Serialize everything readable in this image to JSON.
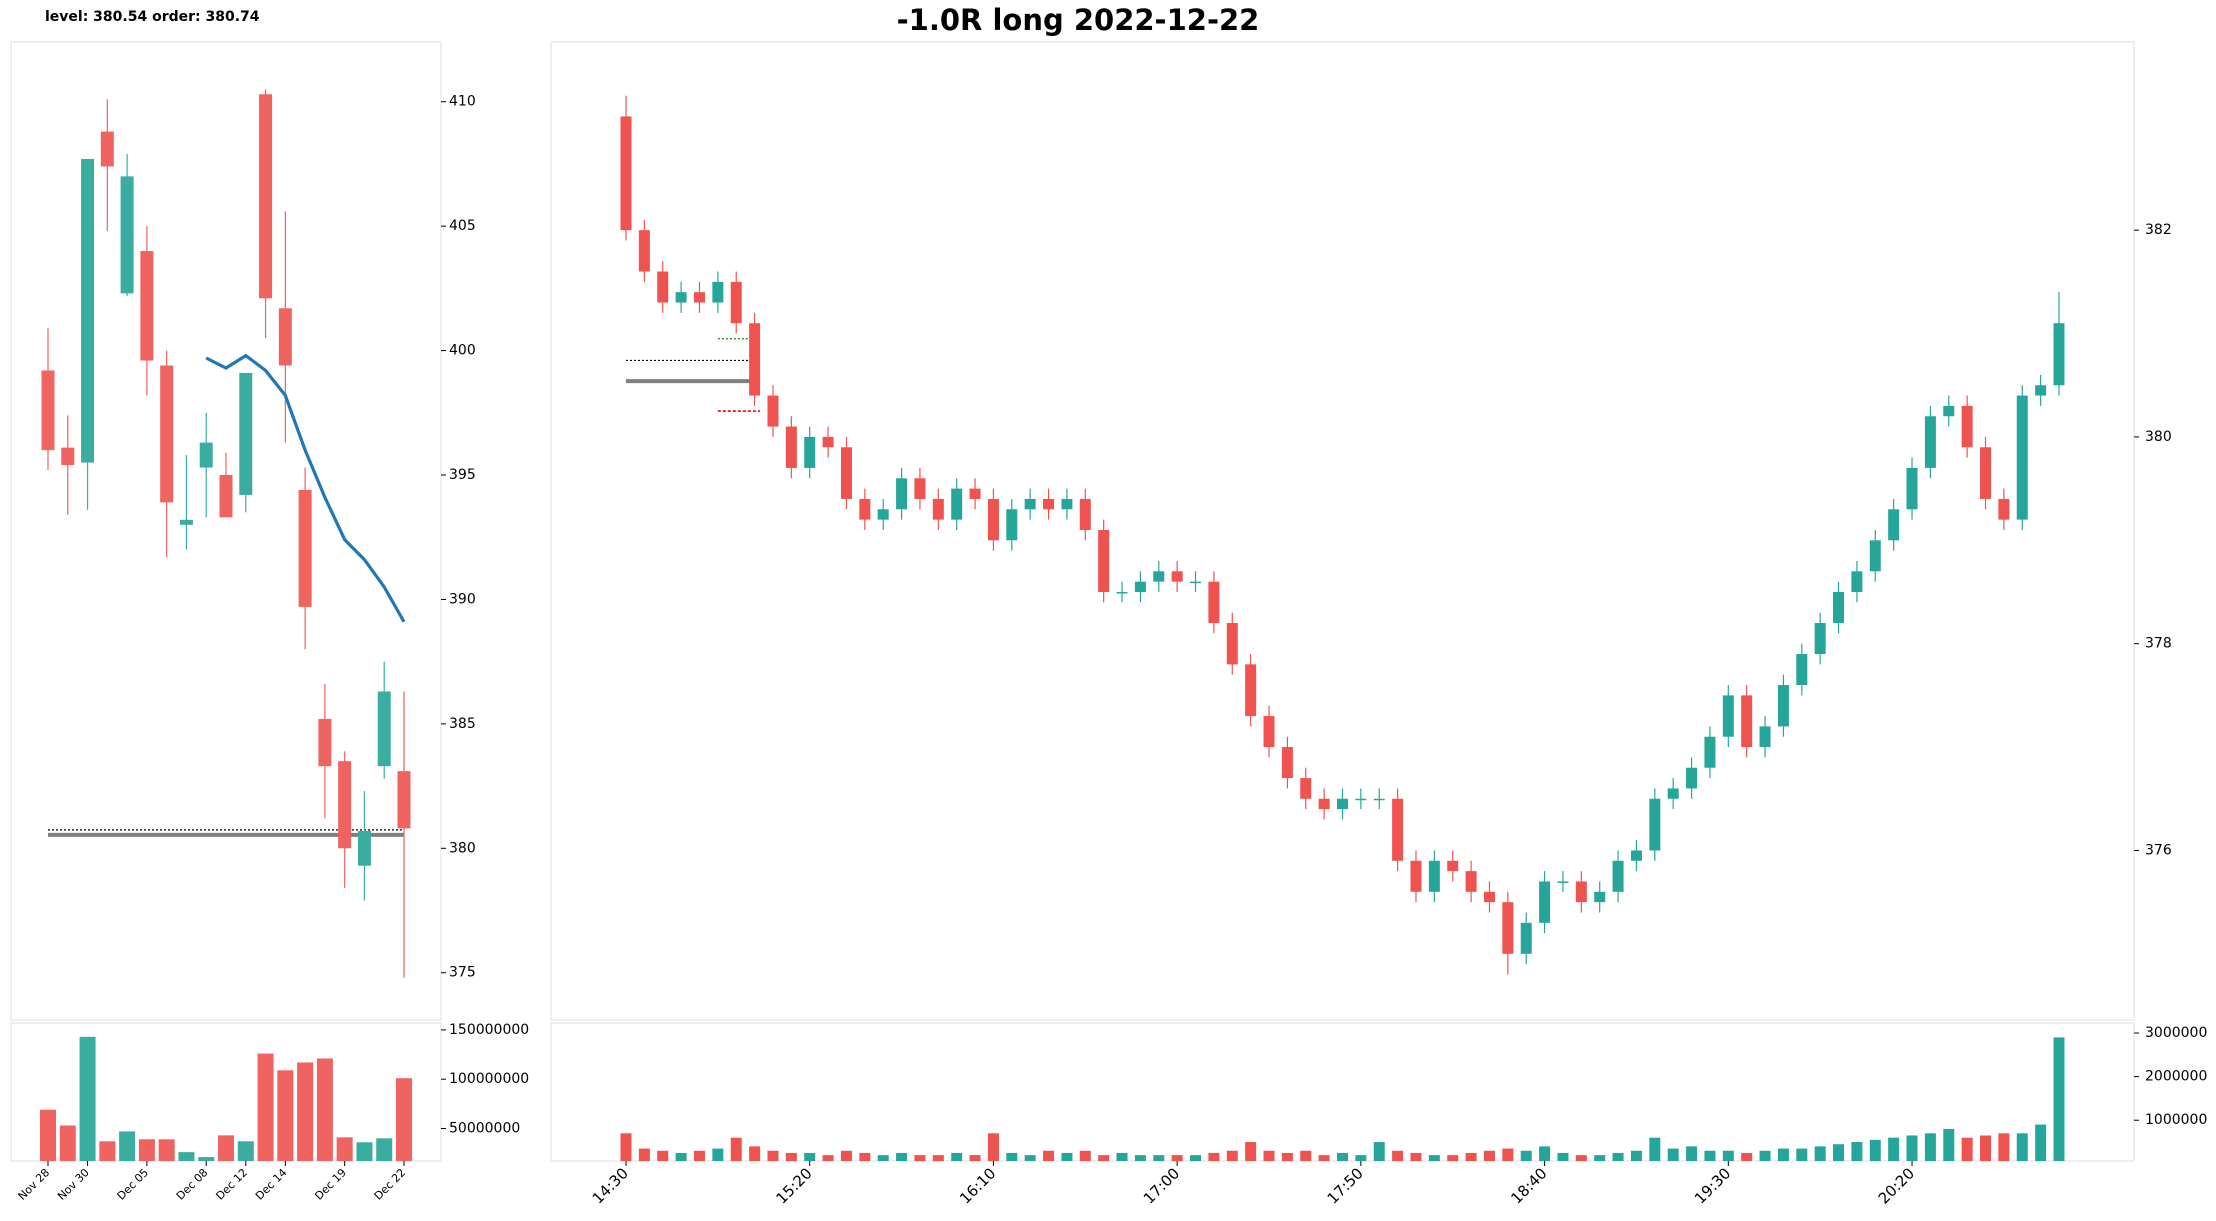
{
  "title": "-1.0R long 2022-12-22",
  "annotation": "level: 380.54  order: 380.74",
  "chart_data": [
    {
      "type": "candlestick",
      "categories": [
        "Nov 28",
        null,
        "Nov 30",
        null,
        null,
        "Dec 05",
        null,
        null,
        "Dec 08",
        null,
        "Dec 12",
        null,
        "Dec 14",
        null,
        null,
        "Dec 19",
        null,
        null,
        "Dec 22"
      ],
      "open": [
        399.2,
        396.1,
        395.5,
        408.8,
        402.3,
        404.0,
        399.4,
        393.0,
        395.3,
        395.0,
        394.2,
        410.3,
        401.7,
        394.4,
        385.2,
        383.5,
        379.3,
        383.3,
        383.1
      ],
      "high": [
        400.9,
        397.4,
        407.7,
        410.1,
        407.9,
        405.0,
        400.0,
        395.8,
        397.5,
        395.9,
        399.1,
        410.5,
        405.6,
        395.3,
        386.6,
        383.9,
        382.3,
        387.5,
        386.3
      ],
      "low": [
        395.2,
        393.4,
        393.6,
        404.8,
        402.2,
        398.2,
        391.7,
        392.0,
        393.3,
        393.3,
        393.5,
        400.5,
        396.3,
        388.0,
        381.2,
        378.4,
        377.9,
        382.8,
        374.8
      ],
      "close": [
        396.0,
        395.4,
        407.7,
        407.4,
        407.0,
        399.6,
        393.9,
        393.2,
        396.3,
        393.3,
        399.1,
        402.1,
        399.4,
        389.7,
        383.3,
        380.0,
        380.7,
        386.3,
        380.8
      ],
      "up_color": "#3aada0",
      "down_color": "#ef6360",
      "ma": {
        "color": "#1f77b4",
        "values": [
          null,
          null,
          null,
          null,
          null,
          null,
          null,
          null,
          399.7,
          399.3,
          399.8,
          399.2,
          398.2,
          396.0,
          394.1,
          392.4,
          391.6,
          390.5,
          389.1
        ]
      },
      "levels": {
        "level": 380.54,
        "order": 380.74
      },
      "ylim": [
        373.1,
        412.4
      ],
      "yticks": [
        375,
        380,
        385,
        390,
        395,
        400,
        405,
        410
      ],
      "volume": {
        "values": [
          69000000,
          53000000,
          143000000,
          37000000,
          47000000,
          39000000,
          39000000,
          26000000,
          21000000,
          43000000,
          37000000,
          126000000,
          109000000,
          117000000,
          121000000,
          41000000,
          36000000,
          40000000,
          101000000
        ],
        "ylim": [
          17000000,
          157000000
        ],
        "yticks": [
          50000000,
          100000000,
          150000000
        ]
      }
    },
    {
      "type": "candlestick",
      "categories": [
        "14:30",
        null,
        null,
        null,
        null,
        null,
        null,
        null,
        null,
        null,
        "15:20",
        null,
        null,
        null,
        null,
        null,
        null,
        null,
        null,
        null,
        "16:10",
        null,
        null,
        null,
        null,
        null,
        null,
        null,
        null,
        null,
        "17:00",
        null,
        null,
        null,
        null,
        null,
        null,
        null,
        null,
        null,
        "17:50",
        null,
        null,
        null,
        null,
        null,
        null,
        null,
        null,
        null,
        "18:40",
        null,
        null,
        null,
        null,
        null,
        null,
        null,
        null,
        null,
        "19:30",
        null,
        null,
        null,
        null,
        null,
        null,
        null,
        null,
        null,
        "20:20",
        null,
        null,
        null,
        null,
        null,
        null,
        null,
        null
      ],
      "open": [
        383.1,
        382.0,
        381.6,
        381.3,
        381.4,
        381.3,
        381.5,
        381.1,
        380.4,
        380.1,
        379.7,
        380.0,
        379.9,
        379.4,
        379.2,
        379.3,
        379.6,
        379.4,
        379.2,
        379.5,
        379.4,
        379.0,
        379.3,
        379.4,
        379.3,
        379.4,
        379.1,
        378.5,
        378.5,
        378.6,
        378.7,
        378.6,
        378.6,
        378.2,
        377.8,
        377.3,
        377.0,
        376.7,
        376.5,
        376.4,
        376.5,
        376.5,
        376.5,
        375.9,
        375.6,
        375.9,
        375.8,
        375.6,
        375.5,
        375.0,
        375.3,
        375.7,
        375.7,
        375.5,
        375.6,
        375.9,
        376.0,
        376.5,
        376.6,
        376.8,
        377.1,
        377.5,
        377.0,
        377.2,
        377.6,
        377.9,
        378.2,
        378.5,
        378.7,
        379.0,
        379.3,
        379.7,
        380.2,
        380.3,
        379.9,
        379.4,
        379.2,
        380.4,
        380.5
      ],
      "high": [
        383.3,
        382.1,
        381.7,
        381.5,
        381.5,
        381.6,
        381.6,
        381.2,
        380.5,
        380.2,
        380.1,
        380.1,
        380.0,
        379.5,
        379.4,
        379.7,
        379.7,
        379.5,
        379.6,
        379.6,
        379.5,
        379.4,
        379.5,
        379.5,
        379.5,
        379.5,
        379.2,
        378.6,
        378.7,
        378.8,
        378.8,
        378.7,
        378.7,
        378.3,
        377.9,
        377.4,
        377.1,
        376.8,
        376.6,
        376.6,
        376.6,
        376.6,
        376.6,
        376.0,
        376.0,
        376.0,
        375.9,
        375.7,
        375.6,
        375.4,
        375.8,
        375.8,
        375.8,
        375.7,
        376.0,
        376.1,
        376.6,
        376.7,
        376.9,
        377.2,
        377.6,
        377.6,
        377.3,
        377.7,
        378.0,
        378.3,
        378.6,
        378.8,
        379.1,
        379.4,
        379.8,
        380.3,
        380.4,
        380.4,
        380.0,
        379.5,
        380.5,
        380.6,
        381.4
      ],
      "low": [
        381.9,
        381.5,
        381.2,
        381.2,
        381.2,
        381.2,
        381.0,
        380.3,
        380.0,
        379.6,
        379.6,
        379.8,
        379.3,
        379.1,
        379.1,
        379.2,
        379.3,
        379.1,
        379.1,
        379.3,
        378.9,
        378.9,
        379.2,
        379.2,
        379.2,
        379.0,
        378.4,
        378.4,
        378.4,
        378.5,
        378.5,
        378.5,
        378.1,
        377.7,
        377.2,
        376.9,
        376.6,
        376.4,
        376.3,
        376.3,
        376.4,
        376.4,
        375.8,
        375.5,
        375.5,
        375.7,
        375.5,
        375.4,
        374.8,
        374.9,
        375.2,
        375.6,
        375.4,
        375.4,
        375.5,
        375.8,
        375.9,
        376.4,
        376.5,
        376.7,
        377.0,
        376.9,
        376.9,
        377.1,
        377.5,
        377.8,
        378.1,
        378.4,
        378.6,
        378.9,
        379.2,
        379.6,
        380.1,
        379.8,
        379.3,
        379.1,
        379.1,
        380.3,
        380.4
      ],
      "close": [
        382.0,
        381.6,
        381.3,
        381.4,
        381.3,
        381.5,
        381.1,
        380.4,
        380.1,
        379.7,
        380.0,
        379.9,
        379.4,
        379.2,
        379.3,
        379.6,
        379.4,
        379.2,
        379.5,
        379.4,
        379.0,
        379.3,
        379.4,
        379.3,
        379.4,
        379.1,
        378.5,
        378.5,
        378.6,
        378.7,
        378.6,
        378.6,
        378.2,
        377.8,
        377.3,
        377.0,
        376.7,
        376.5,
        376.4,
        376.5,
        376.5,
        376.5,
        375.9,
        375.6,
        375.9,
        375.8,
        375.6,
        375.5,
        375.0,
        375.3,
        375.7,
        375.7,
        375.5,
        375.6,
        375.9,
        376.0,
        376.5,
        376.6,
        376.8,
        377.1,
        377.5,
        377.0,
        377.2,
        377.6,
        377.9,
        378.2,
        378.5,
        378.7,
        379.0,
        379.3,
        379.7,
        380.2,
        380.3,
        379.9,
        379.4,
        379.2,
        380.4,
        380.5,
        381.1
      ],
      "up_color": "#26a69a",
      "down_color": "#ef5350",
      "levels": {
        "level": 380.54,
        "order": 380.74,
        "target": 380.95,
        "stop": 380.25
      },
      "ylim": [
        374.36,
        383.82
      ],
      "yticks": [
        376,
        378,
        380,
        382
      ],
      "volume": {
        "values": [
          700000,
          350000,
          300000,
          250000,
          300000,
          350000,
          600000,
          400000,
          300000,
          250000,
          250000,
          200000,
          300000,
          250000,
          200000,
          250000,
          200000,
          200000,
          250000,
          200000,
          700000,
          250000,
          200000,
          300000,
          250000,
          300000,
          200000,
          250000,
          200000,
          200000,
          200000,
          200000,
          250000,
          300000,
          500000,
          300000,
          250000,
          300000,
          200000,
          250000,
          200000,
          500000,
          300000,
          250000,
          200000,
          200000,
          250000,
          300000,
          350000,
          300000,
          400000,
          250000,
          200000,
          200000,
          250000,
          300000,
          600000,
          350000,
          400000,
          300000,
          300000,
          250000,
          300000,
          350000,
          350000,
          400000,
          450000,
          500000,
          550000,
          600000,
          650000,
          700000,
          800000,
          600000,
          650000,
          700000,
          700000,
          900000,
          2900000
        ],
        "ylim": [
          65000,
          3230000
        ],
        "yticks": [
          1000000,
          2000000,
          3000000
        ]
      }
    }
  ]
}
